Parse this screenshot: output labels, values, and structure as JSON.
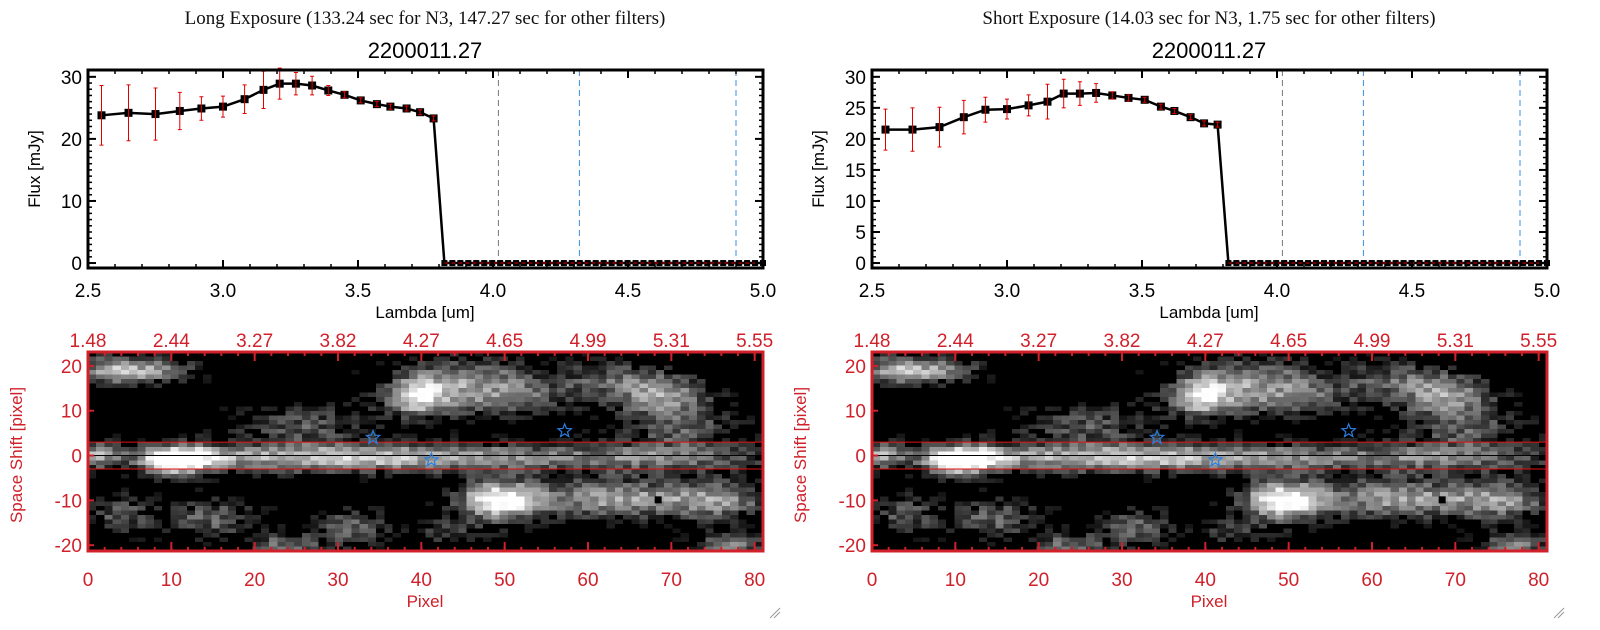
{
  "chart_data": [
    {
      "type": "line",
      "panel": "long",
      "header": "Long Exposure (133.24 sec for N3, 147.27 sec for other filters)",
      "title": "2200011.27",
      "xlabel": "Lambda [um]",
      "ylabel": "Flux [mJy]",
      "xlim": [
        2.5,
        5.0
      ],
      "ylim": [
        -0.8,
        31.1
      ],
      "xticks": [
        "2.5",
        "3.0",
        "3.5",
        "4.0",
        "4.5",
        "5.0"
      ],
      "yticks": [
        "0",
        "10",
        "20",
        "30"
      ],
      "x": [
        2.55,
        2.65,
        2.75,
        2.84,
        2.92,
        3.0,
        3.08,
        3.15,
        3.21,
        3.27,
        3.33,
        3.39,
        3.45,
        3.51,
        3.57,
        3.62,
        3.68,
        3.73,
        3.78
      ],
      "y": [
        23.8,
        24.2,
        24.0,
        24.5,
        24.9,
        25.2,
        26.4,
        27.9,
        28.9,
        28.9,
        28.6,
        27.8,
        27.1,
        26.2,
        25.6,
        25.2,
        24.9,
        24.3,
        23.3
      ],
      "yerr": [
        4.8,
        4.5,
        4.2,
        3.0,
        1.9,
        1.7,
        2.3,
        3.0,
        2.5,
        1.8,
        1.5,
        0.8,
        0.5,
        0.4,
        0.4,
        0.4,
        0.4,
        0.4,
        0.4
      ],
      "zero_points": {
        "start": 3.82,
        "end": 5.0,
        "count": 41
      },
      "vlines": [
        {
          "x": 4.02,
          "color": "#777777"
        },
        {
          "x": 4.32,
          "color": "#3a8fe0"
        },
        {
          "x": 4.9,
          "color": "#3a8fe0"
        }
      ]
    },
    {
      "type": "line",
      "panel": "short",
      "header": "Short Exposure (14.03 sec for N3, 1.75 sec for other filters)",
      "title": "2200011.27",
      "xlabel": "Lambda [um]",
      "ylabel": "Flux [mJy]",
      "xlim": [
        2.5,
        5.0
      ],
      "ylim": [
        -0.8,
        31.1
      ],
      "xticks": [
        "2.5",
        "3.0",
        "3.5",
        "4.0",
        "4.5",
        "5.0"
      ],
      "yticks": [
        "0",
        "5",
        "10",
        "15",
        "20",
        "25",
        "30"
      ],
      "x": [
        2.55,
        2.65,
        2.75,
        2.84,
        2.92,
        3.0,
        3.08,
        3.15,
        3.21,
        3.27,
        3.33,
        3.39,
        3.45,
        3.51,
        3.57,
        3.62,
        3.68,
        3.73,
        3.78
      ],
      "y": [
        21.5,
        21.5,
        21.9,
        23.5,
        24.7,
        24.8,
        25.4,
        26.0,
        27.3,
        27.3,
        27.4,
        27.0,
        26.6,
        26.3,
        25.2,
        24.5,
        23.5,
        22.5,
        22.3
      ],
      "yerr": [
        3.3,
        3.5,
        3.2,
        2.7,
        2.0,
        1.6,
        1.7,
        2.8,
        2.3,
        1.9,
        1.5,
        0.6,
        0.5,
        0.4,
        0.4,
        0.4,
        0.4,
        0.4,
        0.4
      ],
      "zero_points": {
        "start": 3.82,
        "end": 5.0,
        "count": 41
      },
      "vlines": [
        {
          "x": 4.02,
          "color": "#777777"
        },
        {
          "x": 4.32,
          "color": "#3a8fe0"
        },
        {
          "x": 4.9,
          "color": "#3a8fe0"
        }
      ]
    },
    {
      "type": "heatmap",
      "panel": "both",
      "xlabel": "Pixel",
      "ylabel": "Space Shift [pixel]",
      "xlim": [
        0,
        81
      ],
      "ylim": [
        -21.3,
        23.1
      ],
      "xticks": [
        "0",
        "10",
        "20",
        "30",
        "40",
        "50",
        "60",
        "70",
        "80"
      ],
      "yticks": [
        "-20",
        "-10",
        "0",
        "10",
        "20"
      ],
      "top_xticks": [
        "1.48",
        "2.44",
        "3.27",
        "3.82",
        "4.27",
        "4.65",
        "4.99",
        "5.31",
        "5.55"
      ],
      "hlines": [
        {
          "y": 3,
          "color": "#e01010"
        },
        {
          "y": 0,
          "color": "#000000"
        },
        {
          "y": -3,
          "color": "#e01010"
        }
      ],
      "stars": [
        {
          "x": 34.2,
          "y": 4
        },
        {
          "x": 41.2,
          "y": -1
        },
        {
          "x": 57.2,
          "y": 5.5
        }
      ],
      "dark_pixel": {
        "x": 68,
        "y": -10
      },
      "sources": [
        [
          11,
          -1,
          3,
          2.2,
          1.0
        ],
        [
          25,
          -0.5,
          14,
          2.3,
          0.55
        ],
        [
          50,
          -0.5,
          16,
          2.3,
          0.45
        ],
        [
          72,
          -0.5,
          8,
          2.3,
          0.3
        ],
        [
          1,
          0,
          2,
          2,
          0.5
        ],
        [
          3,
          19,
          3,
          2.2,
          0.65
        ],
        [
          9,
          19,
          3,
          2,
          0.45
        ],
        [
          40,
          13,
          3,
          3,
          0.7
        ],
        [
          50,
          13,
          6,
          3,
          0.45
        ],
        [
          70,
          13,
          4,
          3,
          0.55
        ],
        [
          46,
          18,
          6,
          3,
          0.4
        ],
        [
          64,
          17,
          5,
          3,
          0.35
        ],
        [
          50,
          -10,
          3.5,
          3,
          0.95
        ],
        [
          63,
          -9.5,
          6,
          3,
          0.6
        ],
        [
          76,
          -10,
          5,
          3,
          0.55
        ],
        [
          32,
          -16,
          3,
          3,
          0.4
        ],
        [
          15,
          -14,
          4,
          3,
          0.4
        ],
        [
          24,
          -20,
          3,
          2,
          0.45
        ],
        [
          78,
          -20,
          3,
          2,
          0.5
        ],
        [
          26,
          7,
          6,
          3,
          0.35
        ],
        [
          72,
          6,
          5,
          3,
          0.35
        ],
        [
          4,
          -13,
          3,
          3,
          0.35
        ],
        [
          44,
          -17,
          3,
          2,
          0.3
        ]
      ]
    }
  ],
  "colors": {
    "axis_black": "#000000",
    "axis_red": "#d0202a",
    "errorbar": "#e00000",
    "zero_line": "#e00000"
  }
}
